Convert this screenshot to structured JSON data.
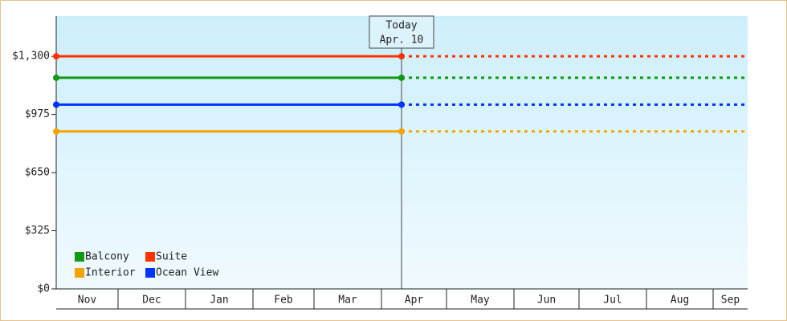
{
  "chart_data": {
    "type": "line",
    "annotation": {
      "title": "Today",
      "date": "Apr. 10"
    },
    "categories": [
      "Nov",
      "Dec",
      "Jan",
      "Feb",
      "Mar",
      "Apr",
      "May",
      "Jun",
      "Jul",
      "Aug",
      "Sep"
    ],
    "series": [
      {
        "name": "Balcony",
        "color": "#119911",
        "value": 1180
      },
      {
        "name": "Suite",
        "color": "#ff3300",
        "value": 1300
      },
      {
        "name": "Interior",
        "color": "#f5a300",
        "value": 880
      },
      {
        "name": "Ocean View",
        "color": "#0033ff",
        "value": 1030
      }
    ],
    "ylim": [
      0,
      1525
    ],
    "yticks": [
      {
        "value": 0,
        "label": "$0"
      },
      {
        "value": 325,
        "label": "$325"
      },
      {
        "value": 650,
        "label": "$650"
      },
      {
        "value": 975,
        "label": "$975"
      },
      {
        "value": 1300,
        "label": "$1,300"
      }
    ]
  }
}
